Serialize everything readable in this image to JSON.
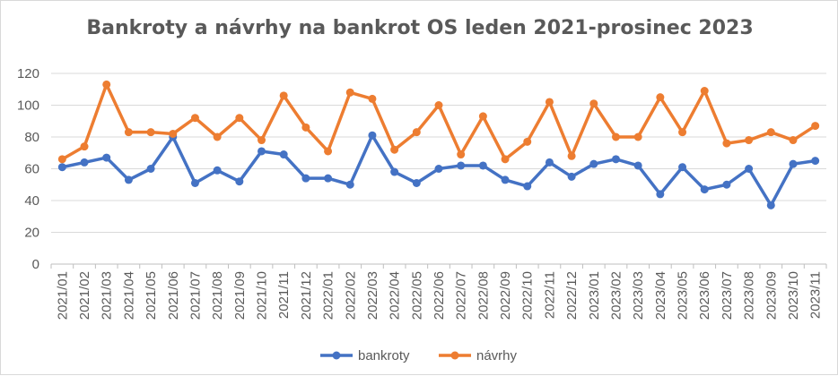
{
  "chart_data": {
    "type": "line",
    "title": "Bankroty a návrhy na bankrot OS leden 2021-prosinec 2023",
    "xlabel": "",
    "ylabel": "",
    "ylim": [
      0,
      120
    ],
    "yticks": [
      0,
      20,
      40,
      60,
      80,
      100,
      120
    ],
    "grid": true,
    "legend_position": "bottom",
    "categories": [
      "2021/01",
      "2021/02",
      "2021/03",
      "2021/04",
      "2021/05",
      "2021/06",
      "2021/07",
      "2021/08",
      "2021/09",
      "2021/10",
      "2021/11",
      "2021/12",
      "2022/01",
      "2022/02",
      "2022/03",
      "2022/04",
      "2022/05",
      "2022/06",
      "2022/07",
      "2022/08",
      "2022/09",
      "2022/10",
      "2022/11",
      "2022/12",
      "2023/01",
      "2023/02",
      "2023/03",
      "2023/04",
      "2023/05",
      "2023/06",
      "2023/07",
      "2023/08",
      "2023/09",
      "2023/10",
      "2023/11"
    ],
    "series": [
      {
        "name": "bankroty",
        "color": "#4472c4",
        "values": [
          61,
          64,
          67,
          53,
          60,
          80,
          51,
          59,
          52,
          71,
          69,
          54,
          54,
          50,
          81,
          58,
          51,
          60,
          62,
          62,
          53,
          49,
          64,
          55,
          63,
          66,
          62,
          44,
          61,
          47,
          50,
          60,
          37,
          63,
          65
        ]
      },
      {
        "name": "návrhy",
        "color": "#ed7d31",
        "values": [
          66,
          74,
          113,
          83,
          83,
          82,
          92,
          80,
          92,
          78,
          106,
          86,
          71,
          108,
          104,
          72,
          83,
          100,
          69,
          93,
          66,
          77,
          102,
          68,
          101,
          80,
          80,
          105,
          83,
          109,
          76,
          78,
          83,
          78,
          87
        ]
      }
    ]
  }
}
